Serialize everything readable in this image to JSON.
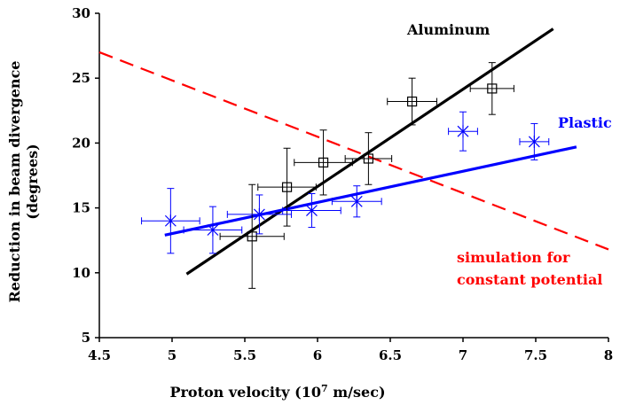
{
  "chart_data": {
    "type": "scatter",
    "title": "",
    "xlabel": "Proton velocity (10",
    "xlabel_sup": "7",
    "xlabel_rest": " m/sec)",
    "ylabel_line1": "Reduction in beam divergence",
    "ylabel_line2": "(degrees)",
    "xlim": [
      4.5,
      8
    ],
    "ylim": [
      5,
      30
    ],
    "xticks": [
      "4.5",
      "5",
      "5.5",
      "6",
      "6.5",
      "7",
      "7.5",
      "8"
    ],
    "yticks": [
      "5",
      "10",
      "15",
      "20",
      "25",
      "30"
    ],
    "grid": false,
    "series": [
      {
        "name": "Aluminum",
        "marker": "square",
        "color": "#000000",
        "points": [
          {
            "x": 5.55,
            "y": 12.8,
            "xerr": 0.22,
            "yerr": 4.0
          },
          {
            "x": 5.79,
            "y": 16.6,
            "xerr": 0.2,
            "yerr": 3.0
          },
          {
            "x": 6.04,
            "y": 18.5,
            "xerr": 0.2,
            "yerr": 2.5
          },
          {
            "x": 6.35,
            "y": 18.8,
            "xerr": 0.16,
            "yerr": 2.0
          },
          {
            "x": 6.65,
            "y": 23.2,
            "xerr": 0.17,
            "yerr": 1.8
          },
          {
            "x": 7.2,
            "y": 24.2,
            "xerr": 0.15,
            "yerr": 2.0
          }
        ],
        "fit": [
          [
            5.1,
            9.9
          ],
          [
            7.62,
            28.8
          ]
        ]
      },
      {
        "name": "Plastic",
        "marker": "star",
        "color": "#0000ff",
        "points": [
          {
            "x": 4.99,
            "y": 14.0,
            "xerr": 0.2,
            "yerr": 2.5
          },
          {
            "x": 5.28,
            "y": 13.3,
            "xerr": 0.2,
            "yerr": 1.8
          },
          {
            "x": 5.6,
            "y": 14.5,
            "xerr": 0.22,
            "yerr": 1.5
          },
          {
            "x": 5.96,
            "y": 14.8,
            "xerr": 0.2,
            "yerr": 1.3
          },
          {
            "x": 6.27,
            "y": 15.5,
            "xerr": 0.17,
            "yerr": 1.2
          },
          {
            "x": 7.0,
            "y": 20.9,
            "xerr": 0.1,
            "yerr": 1.5
          },
          {
            "x": 7.49,
            "y": 20.1,
            "xerr": 0.1,
            "yerr": 1.4
          }
        ],
        "fit": [
          [
            4.95,
            12.9
          ],
          [
            7.78,
            19.7
          ]
        ]
      },
      {
        "name": "simulation for constant potential",
        "label_line1": "simulation for",
        "label_line2": "constant potential",
        "style": "dashed",
        "color": "#ff0000",
        "line": [
          [
            4.5,
            27.0
          ],
          [
            8.0,
            11.8
          ]
        ]
      }
    ]
  }
}
